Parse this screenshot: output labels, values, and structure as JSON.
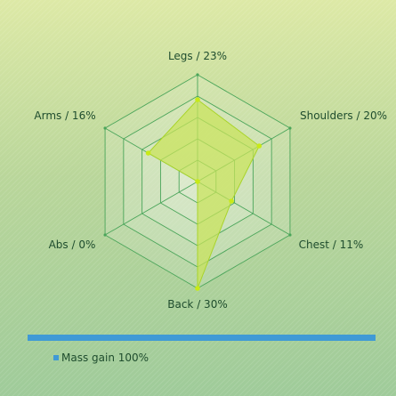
{
  "chart_data": {
    "type": "radar",
    "title": "",
    "categories": [
      "Legs",
      "Shoulders",
      "Chest",
      "Back",
      "Abs",
      "Arms"
    ],
    "category_labels": [
      "Legs / 23%",
      "Shoulders / 20%",
      "Chest / 11%",
      "Back / 30%",
      "Abs / 0%",
      "Arms / 16%"
    ],
    "series": [
      {
        "name": "Mass gain 100%",
        "values": [
          23,
          20,
          11,
          30,
          0,
          16
        ]
      }
    ],
    "rlim": [
      0,
      30
    ],
    "rings": 5,
    "grid": true,
    "legend": "bottom-left"
  },
  "colors": {
    "fill": "#c9e35a",
    "stroke": "#a9d42a",
    "point": "#c8ea17",
    "grid": "#4aa55a",
    "grid_fill": "#ffffff",
    "legend": "#3f9ad6"
  }
}
